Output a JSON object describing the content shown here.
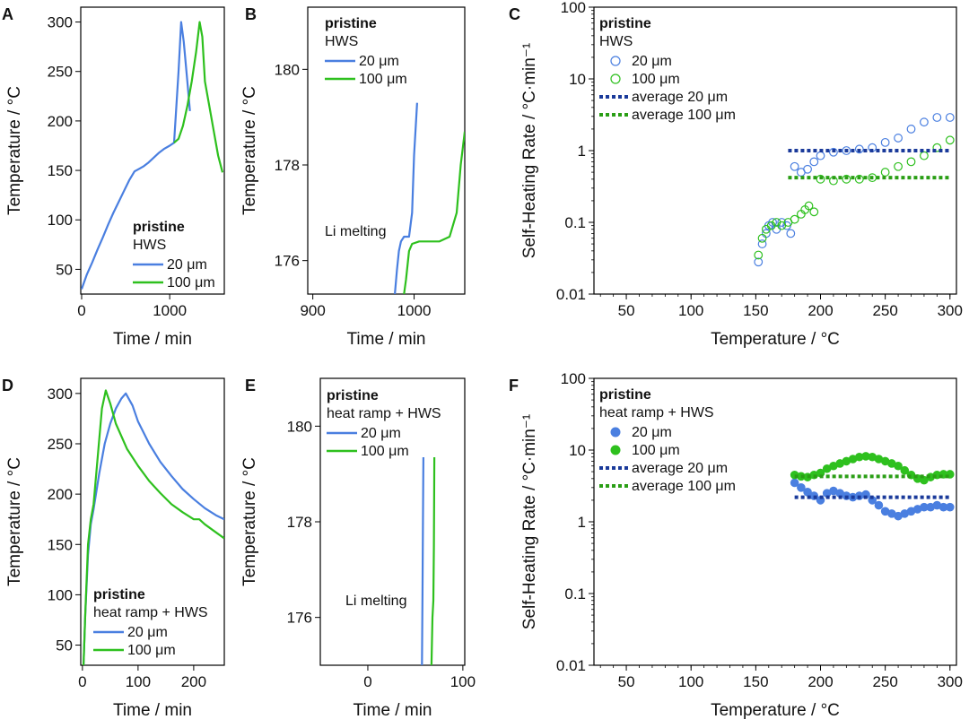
{
  "figure": {
    "description_free": true
  },
  "chart_data": [
    {
      "id": "A",
      "letter": "A",
      "type": "line",
      "xlabel": "Time / min",
      "ylabel": "Temperature / °C",
      "xlim": [
        -10,
        1620
      ],
      "ylim": [
        25,
        315
      ],
      "xticks": [
        0,
        1000
      ],
      "yticks": [
        50,
        100,
        150,
        200,
        250,
        300
      ],
      "yscale": "linear",
      "legend": {
        "title": "pristine",
        "subtitle": "HWS",
        "items": [
          "20 μm",
          "100 μm"
        ]
      },
      "series": [
        {
          "name": "20 μm",
          "color": "#4a7fe0",
          "x": [
            0,
            60,
            120,
            180,
            240,
            300,
            360,
            420,
            480,
            540,
            600,
            660,
            700,
            760,
            820,
            880,
            940,
            1000,
            1050,
            1100,
            1130,
            1160,
            1200,
            1230
          ],
          "y": [
            30,
            45,
            57,
            70,
            82,
            95,
            107,
            118,
            129,
            140,
            149,
            152,
            154,
            158,
            163,
            168,
            172,
            175,
            178,
            250,
            300,
            280,
            240,
            210
          ]
        },
        {
          "name": "100 μm",
          "color": "#2ec01e",
          "x": [
            1050,
            1100,
            1150,
            1200,
            1250,
            1300,
            1340,
            1370,
            1400,
            1450,
            1500,
            1550,
            1600
          ],
          "y": [
            178,
            182,
            195,
            215,
            240,
            270,
            300,
            285,
            240,
            215,
            190,
            165,
            148
          ]
        }
      ]
    },
    {
      "id": "B",
      "letter": "B",
      "type": "line",
      "xlabel": "Time / min",
      "ylabel": "Temperature / °C",
      "xlim": [
        895,
        1050
      ],
      "ylim": [
        175.3,
        181.3
      ],
      "xticks": [
        900,
        1000
      ],
      "yticks": [
        176,
        178,
        180
      ],
      "yscale": "linear",
      "legend": {
        "title": "pristine",
        "subtitle": "HWS",
        "items": [
          "20 μm",
          "100 μm"
        ]
      },
      "annotation": "Li melting",
      "series": [
        {
          "name": "20 μm",
          "color": "#4a7fe0",
          "x": [
            981,
            983,
            985,
            987,
            990,
            995,
            998,
            1000,
            1003
          ],
          "y": [
            175.3,
            175.8,
            176.2,
            176.4,
            176.5,
            176.5,
            177.0,
            178.2,
            179.3
          ]
        },
        {
          "name": "100 μm",
          "color": "#2ec01e",
          "x": [
            990,
            992,
            995,
            998,
            1005,
            1015,
            1025,
            1035,
            1042,
            1046,
            1050
          ],
          "y": [
            175.3,
            175.6,
            176.2,
            176.35,
            176.4,
            176.4,
            176.4,
            176.5,
            177.0,
            178.0,
            178.7
          ]
        }
      ]
    },
    {
      "id": "C",
      "letter": "C",
      "type": "scatter",
      "xlabel": "Temperature / °C",
      "ylabel": "Self-Heating Rate / °C·min⁻¹",
      "xlim": [
        25,
        305
      ],
      "ylim": [
        0.01,
        100
      ],
      "xticks": [
        50,
        100,
        150,
        200,
        250,
        300
      ],
      "yticks": [
        0.01,
        0.1,
        1,
        10,
        100
      ],
      "ytick_labels": [
        "0.01",
        "0.1",
        "1",
        "10",
        "100"
      ],
      "yscale": "log",
      "marker": "open",
      "legend": {
        "title": "pristine",
        "subtitle": "HWS",
        "items": [
          "20 μm",
          "100 μm",
          "average 20 μm",
          "average 100 μm"
        ]
      },
      "series": [
        {
          "name": "20 μm",
          "color": "#4a7fe0",
          "x": [
            152,
            155,
            158,
            160,
            163,
            166,
            170,
            174,
            177,
            180,
            185,
            190,
            195,
            200,
            210,
            220,
            230,
            240,
            250,
            260,
            270,
            280,
            290,
            300
          ],
          "y": [
            0.028,
            0.05,
            0.07,
            0.09,
            0.1,
            0.08,
            0.1,
            0.09,
            0.07,
            0.6,
            0.5,
            0.55,
            0.7,
            0.85,
            0.95,
            1.0,
            1.05,
            1.1,
            1.3,
            1.5,
            2.0,
            2.5,
            2.9,
            2.9
          ]
        },
        {
          "name": "100 μm",
          "color": "#2ec01e",
          "x": [
            152,
            155,
            158,
            162,
            166,
            170,
            175,
            180,
            185,
            188,
            191,
            195,
            200,
            210,
            220,
            230,
            240,
            250,
            260,
            270,
            280,
            290,
            300
          ],
          "y": [
            0.035,
            0.06,
            0.08,
            0.09,
            0.1,
            0.09,
            0.1,
            0.11,
            0.13,
            0.15,
            0.17,
            0.14,
            0.4,
            0.38,
            0.4,
            0.4,
            0.42,
            0.5,
            0.6,
            0.7,
            0.85,
            1.1,
            1.4
          ]
        },
        {
          "name": "average 20 μm",
          "color": "#1a3a9a",
          "type": "hline",
          "value": 1.0,
          "x_range": [
            175,
            300
          ]
        },
        {
          "name": "average 100 μm",
          "color": "#2a9e15",
          "type": "hline",
          "value": 0.42,
          "x_range": [
            175,
            300
          ]
        }
      ]
    },
    {
      "id": "D",
      "letter": "D",
      "type": "line",
      "xlabel": "Time / min",
      "ylabel": "Temperature / °C",
      "xlim": [
        -3,
        255
      ],
      "ylim": [
        30,
        315
      ],
      "xticks": [
        0,
        100,
        200
      ],
      "yticks": [
        50,
        100,
        150,
        200,
        250,
        300
      ],
      "yscale": "linear",
      "legend": {
        "title": "pristine",
        "subtitle": "heat ramp + HWS",
        "items": [
          "20 μm",
          "100 μm"
        ]
      },
      "series": [
        {
          "name": "20 μm",
          "color": "#4a7fe0",
          "x": [
            2,
            5,
            10,
            15,
            20,
            30,
            40,
            50,
            60,
            70,
            78,
            90,
            100,
            120,
            140,
            160,
            180,
            200,
            220,
            240,
            255
          ],
          "y": [
            30,
            80,
            140,
            170,
            185,
            220,
            250,
            270,
            285,
            295,
            300,
            288,
            272,
            250,
            232,
            218,
            205,
            195,
            186,
            179,
            175
          ]
        },
        {
          "name": "100 μm",
          "color": "#2ec01e",
          "x": [
            2,
            5,
            10,
            15,
            20,
            28,
            35,
            42,
            50,
            60,
            80,
            100,
            120,
            140,
            160,
            180,
            200,
            210,
            220,
            240,
            255
          ],
          "y": [
            30,
            80,
            150,
            175,
            190,
            240,
            285,
            303,
            290,
            270,
            245,
            228,
            213,
            201,
            190,
            182,
            175,
            175,
            170,
            162,
            156
          ]
        }
      ]
    },
    {
      "id": "E",
      "letter": "E",
      "type": "line",
      "xlabel": "Time / min",
      "ylabel": "Temperature / °C",
      "xlim": [
        -50,
        102
      ],
      "ylim": [
        175,
        181
      ],
      "xticks": [
        0,
        100
      ],
      "yticks": [
        176,
        178,
        180
      ],
      "yscale": "linear",
      "legend": {
        "title": "pristine",
        "subtitle": "heat ramp + HWS",
        "items": [
          "20 μm",
          "100 μm"
        ]
      },
      "annotation": "Li melting",
      "series": [
        {
          "name": "20 μm",
          "color": "#4a7fe0",
          "x": [
            57,
            57.5,
            58,
            58.5
          ],
          "y": [
            175.0,
            176.5,
            178.0,
            179.35
          ]
        },
        {
          "name": "100 μm",
          "color": "#2ec01e",
          "x": [
            67,
            68,
            69,
            69.5,
            70
          ],
          "y": [
            175.0,
            176.0,
            176.35,
            177.5,
            179.35
          ]
        }
      ]
    },
    {
      "id": "F",
      "letter": "F",
      "type": "scatter",
      "xlabel": "Temperature / °C",
      "ylabel": "Self-Heating Rate / °C·min⁻¹",
      "xlim": [
        25,
        305
      ],
      "ylim": [
        0.01,
        100
      ],
      "xticks": [
        50,
        100,
        150,
        200,
        250,
        300
      ],
      "yticks": [
        0.01,
        0.1,
        1,
        10,
        100
      ],
      "ytick_labels": [
        "0.01",
        "0.1",
        "1",
        "10",
        "100"
      ],
      "yscale": "log",
      "marker": "filled",
      "legend": {
        "title": "pristine",
        "subtitle": "heat ramp + HWS",
        "items": [
          "20 μm",
          "100 μm",
          "average 20 μm",
          "average 100 μm"
        ]
      },
      "series": [
        {
          "name": "20 μm",
          "color": "#4a7fe0",
          "x": [
            180,
            185,
            190,
            195,
            200,
            205,
            210,
            215,
            220,
            225,
            230,
            235,
            240,
            245,
            250,
            255,
            260,
            265,
            270,
            275,
            280,
            285,
            290,
            295,
            300
          ],
          "y": [
            3.5,
            3.0,
            2.6,
            2.3,
            2.0,
            2.5,
            2.7,
            2.5,
            2.3,
            2.2,
            2.3,
            2.4,
            2.0,
            1.7,
            1.4,
            1.3,
            1.2,
            1.3,
            1.4,
            1.5,
            1.6,
            1.6,
            1.7,
            1.6,
            1.6
          ]
        },
        {
          "name": "100 μm",
          "color": "#2ec01e",
          "x": [
            180,
            185,
            190,
            195,
            200,
            205,
            210,
            215,
            220,
            225,
            230,
            235,
            240,
            245,
            250,
            255,
            260,
            265,
            270,
            275,
            280,
            285,
            290,
            295,
            300
          ],
          "y": [
            4.5,
            4.3,
            4.2,
            4.5,
            4.8,
            5.5,
            6.0,
            6.5,
            7.0,
            7.5,
            8.0,
            8.2,
            8.0,
            7.5,
            7.0,
            6.5,
            6.0,
            5.2,
            4.5,
            4.0,
            3.8,
            4.2,
            4.5,
            4.6,
            4.6
          ]
        },
        {
          "name": "average 20 μm",
          "color": "#1a3a9a",
          "type": "hline",
          "value": 2.2,
          "x_range": [
            180,
            300
          ]
        },
        {
          "name": "average 100 μm",
          "color": "#2a9e15",
          "type": "hline",
          "value": 4.3,
          "x_range": [
            180,
            300
          ]
        }
      ]
    }
  ]
}
